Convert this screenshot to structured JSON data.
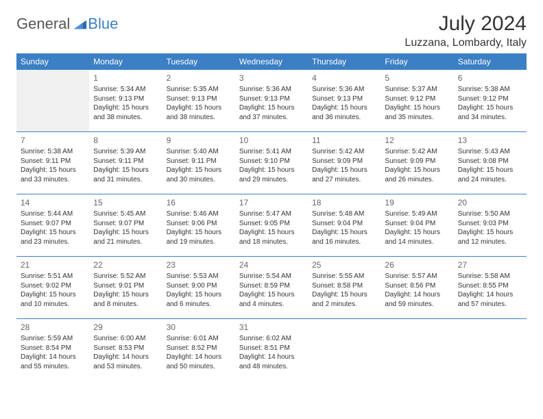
{
  "logo": {
    "main": "General",
    "blue": "Blue"
  },
  "title": "July 2024",
  "location": "Luzzana, Lombardy, Italy",
  "colors": {
    "header_bg": "#3b7fc4",
    "header_text": "#ffffff",
    "sep_line": "#3b7fc4",
    "blank_bg": "#f0f0f0",
    "text": "#333333",
    "daynum": "#666666",
    "logo_gray": "#555555",
    "logo_blue": "#3b7fc4"
  },
  "day_headers": [
    "Sunday",
    "Monday",
    "Tuesday",
    "Wednesday",
    "Thursday",
    "Friday",
    "Saturday"
  ],
  "weeks": [
    [
      {
        "blank": true
      },
      {
        "n": "1",
        "sunrise": "Sunrise: 5:34 AM",
        "sunset": "Sunset: 9:13 PM",
        "d1": "Daylight: 15 hours",
        "d2": "and 38 minutes."
      },
      {
        "n": "2",
        "sunrise": "Sunrise: 5:35 AM",
        "sunset": "Sunset: 9:13 PM",
        "d1": "Daylight: 15 hours",
        "d2": "and 38 minutes."
      },
      {
        "n": "3",
        "sunrise": "Sunrise: 5:36 AM",
        "sunset": "Sunset: 9:13 PM",
        "d1": "Daylight: 15 hours",
        "d2": "and 37 minutes."
      },
      {
        "n": "4",
        "sunrise": "Sunrise: 5:36 AM",
        "sunset": "Sunset: 9:13 PM",
        "d1": "Daylight: 15 hours",
        "d2": "and 36 minutes."
      },
      {
        "n": "5",
        "sunrise": "Sunrise: 5:37 AM",
        "sunset": "Sunset: 9:12 PM",
        "d1": "Daylight: 15 hours",
        "d2": "and 35 minutes."
      },
      {
        "n": "6",
        "sunrise": "Sunrise: 5:38 AM",
        "sunset": "Sunset: 9:12 PM",
        "d1": "Daylight: 15 hours",
        "d2": "and 34 minutes."
      }
    ],
    [
      {
        "n": "7",
        "sunrise": "Sunrise: 5:38 AM",
        "sunset": "Sunset: 9:11 PM",
        "d1": "Daylight: 15 hours",
        "d2": "and 33 minutes."
      },
      {
        "n": "8",
        "sunrise": "Sunrise: 5:39 AM",
        "sunset": "Sunset: 9:11 PM",
        "d1": "Daylight: 15 hours",
        "d2": "and 31 minutes."
      },
      {
        "n": "9",
        "sunrise": "Sunrise: 5:40 AM",
        "sunset": "Sunset: 9:11 PM",
        "d1": "Daylight: 15 hours",
        "d2": "and 30 minutes."
      },
      {
        "n": "10",
        "sunrise": "Sunrise: 5:41 AM",
        "sunset": "Sunset: 9:10 PM",
        "d1": "Daylight: 15 hours",
        "d2": "and 29 minutes."
      },
      {
        "n": "11",
        "sunrise": "Sunrise: 5:42 AM",
        "sunset": "Sunset: 9:09 PM",
        "d1": "Daylight: 15 hours",
        "d2": "and 27 minutes."
      },
      {
        "n": "12",
        "sunrise": "Sunrise: 5:42 AM",
        "sunset": "Sunset: 9:09 PM",
        "d1": "Daylight: 15 hours",
        "d2": "and 26 minutes."
      },
      {
        "n": "13",
        "sunrise": "Sunrise: 5:43 AM",
        "sunset": "Sunset: 9:08 PM",
        "d1": "Daylight: 15 hours",
        "d2": "and 24 minutes."
      }
    ],
    [
      {
        "n": "14",
        "sunrise": "Sunrise: 5:44 AM",
        "sunset": "Sunset: 9:07 PM",
        "d1": "Daylight: 15 hours",
        "d2": "and 23 minutes."
      },
      {
        "n": "15",
        "sunrise": "Sunrise: 5:45 AM",
        "sunset": "Sunset: 9:07 PM",
        "d1": "Daylight: 15 hours",
        "d2": "and 21 minutes."
      },
      {
        "n": "16",
        "sunrise": "Sunrise: 5:46 AM",
        "sunset": "Sunset: 9:06 PM",
        "d1": "Daylight: 15 hours",
        "d2": "and 19 minutes."
      },
      {
        "n": "17",
        "sunrise": "Sunrise: 5:47 AM",
        "sunset": "Sunset: 9:05 PM",
        "d1": "Daylight: 15 hours",
        "d2": "and 18 minutes."
      },
      {
        "n": "18",
        "sunrise": "Sunrise: 5:48 AM",
        "sunset": "Sunset: 9:04 PM",
        "d1": "Daylight: 15 hours",
        "d2": "and 16 minutes."
      },
      {
        "n": "19",
        "sunrise": "Sunrise: 5:49 AM",
        "sunset": "Sunset: 9:04 PM",
        "d1": "Daylight: 15 hours",
        "d2": "and 14 minutes."
      },
      {
        "n": "20",
        "sunrise": "Sunrise: 5:50 AM",
        "sunset": "Sunset: 9:03 PM",
        "d1": "Daylight: 15 hours",
        "d2": "and 12 minutes."
      }
    ],
    [
      {
        "n": "21",
        "sunrise": "Sunrise: 5:51 AM",
        "sunset": "Sunset: 9:02 PM",
        "d1": "Daylight: 15 hours",
        "d2": "and 10 minutes."
      },
      {
        "n": "22",
        "sunrise": "Sunrise: 5:52 AM",
        "sunset": "Sunset: 9:01 PM",
        "d1": "Daylight: 15 hours",
        "d2": "and 8 minutes."
      },
      {
        "n": "23",
        "sunrise": "Sunrise: 5:53 AM",
        "sunset": "Sunset: 9:00 PM",
        "d1": "Daylight: 15 hours",
        "d2": "and 6 minutes."
      },
      {
        "n": "24",
        "sunrise": "Sunrise: 5:54 AM",
        "sunset": "Sunset: 8:59 PM",
        "d1": "Daylight: 15 hours",
        "d2": "and 4 minutes."
      },
      {
        "n": "25",
        "sunrise": "Sunrise: 5:55 AM",
        "sunset": "Sunset: 8:58 PM",
        "d1": "Daylight: 15 hours",
        "d2": "and 2 minutes."
      },
      {
        "n": "26",
        "sunrise": "Sunrise: 5:57 AM",
        "sunset": "Sunset: 8:56 PM",
        "d1": "Daylight: 14 hours",
        "d2": "and 59 minutes."
      },
      {
        "n": "27",
        "sunrise": "Sunrise: 5:58 AM",
        "sunset": "Sunset: 8:55 PM",
        "d1": "Daylight: 14 hours",
        "d2": "and 57 minutes."
      }
    ],
    [
      {
        "n": "28",
        "sunrise": "Sunrise: 5:59 AM",
        "sunset": "Sunset: 8:54 PM",
        "d1": "Daylight: 14 hours",
        "d2": "and 55 minutes."
      },
      {
        "n": "29",
        "sunrise": "Sunrise: 6:00 AM",
        "sunset": "Sunset: 8:53 PM",
        "d1": "Daylight: 14 hours",
        "d2": "and 53 minutes."
      },
      {
        "n": "30",
        "sunrise": "Sunrise: 6:01 AM",
        "sunset": "Sunset: 8:52 PM",
        "d1": "Daylight: 14 hours",
        "d2": "and 50 minutes."
      },
      {
        "n": "31",
        "sunrise": "Sunrise: 6:02 AM",
        "sunset": "Sunset: 8:51 PM",
        "d1": "Daylight: 14 hours",
        "d2": "and 48 minutes."
      },
      {
        "blank": true
      },
      {
        "blank": true
      },
      {
        "blank": true
      }
    ]
  ]
}
